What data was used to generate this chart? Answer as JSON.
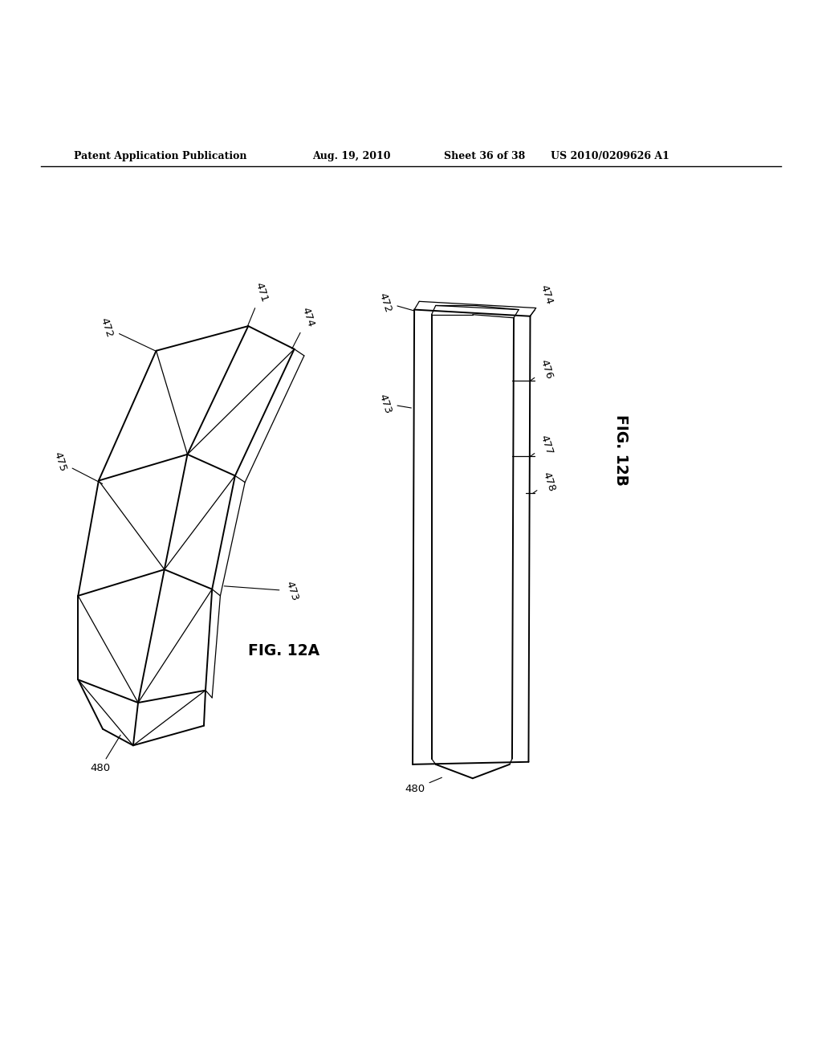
{
  "bg_color": "#ffffff",
  "line_color": "#000000",
  "header_text": "Patent Application Publication",
  "header_date": "Aug. 19, 2010",
  "header_sheet": "Sheet 36 of 38",
  "header_patent": "US 2010/0209626 A1",
  "fig12a_label": "FIG. 12A",
  "fig12b_label": "FIG. 12B"
}
